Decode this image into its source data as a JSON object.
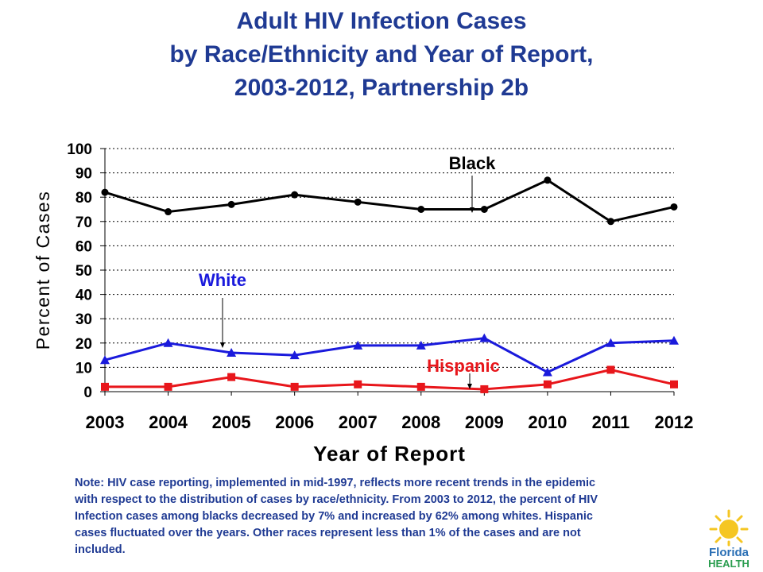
{
  "title": {
    "line1": "Adult HIV Infection Cases",
    "line2": "by Race/Ethnicity and Year of Report,",
    "line3": "2003-2012, Partnership 2b"
  },
  "chart_data": {
    "type": "line",
    "title": "Adult HIV Infection Cases by Race/Ethnicity and Year of Report, 2003-2012, Partnership 2b",
    "xlabel": "Year of Report",
    "ylabel": "Percent of Cases",
    "categories": [
      "2003",
      "2004",
      "2005",
      "2006",
      "2007",
      "2008",
      "2009",
      "2010",
      "2011",
      "2012"
    ],
    "ylim": [
      0,
      100
    ],
    "yticks": [
      0,
      10,
      20,
      30,
      40,
      50,
      60,
      70,
      80,
      90,
      100
    ],
    "grid": true,
    "series": [
      {
        "name": "Black",
        "color": "#000000",
        "marker": "circle",
        "values": [
          82,
          74,
          77,
          81,
          78,
          75,
          75,
          87,
          70,
          76
        ]
      },
      {
        "name": "White",
        "color": "#1a1adc",
        "marker": "triangle",
        "values": [
          13,
          20,
          16,
          15,
          19,
          19,
          22,
          8,
          20,
          21
        ]
      },
      {
        "name": "Hispanic",
        "color": "#e8161b",
        "marker": "square",
        "values": [
          2,
          2,
          6,
          2,
          3,
          2,
          1,
          3,
          9,
          3
        ]
      }
    ],
    "annotations": [
      {
        "text": "Black",
        "color": "#000000",
        "series": 0,
        "category": "2009"
      },
      {
        "text": "White",
        "color": "#1a1adc",
        "series": 1,
        "category": "2005"
      },
      {
        "text": "Hispanic",
        "color": "#e8161b",
        "series": 2,
        "category": "2009"
      }
    ]
  },
  "note": {
    "line1": "Note: HIV case reporting, implemented in mid-1997, reflects more recent trends in the epidemic",
    "line2": "with respect to the distribution of cases by race/ethnicity. From 2003 to 2012, the percent of HIV",
    "line3": "Infection cases among blacks decreased by 7% and increased by 62% among whites.  Hispanic",
    "line4": "cases fluctuated over the years. Other races represent less than  1% of the cases and are not",
    "line5": "included."
  },
  "logo": {
    "line1": "Florida",
    "line2": "HEALTH",
    "colors": {
      "sun": "#f5c623",
      "text_top": "#2a6fb5",
      "text_bottom": "#2a9d4f"
    }
  }
}
